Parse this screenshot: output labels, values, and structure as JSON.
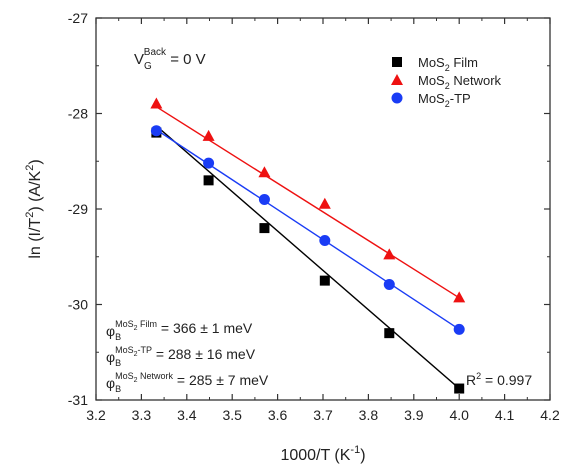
{
  "chart_data": {
    "type": "scatter",
    "xlabel": {
      "main": "1000/T (K",
      "sup": "-1",
      "end": ")"
    },
    "ylabel": {
      "main": "ln (I/T",
      "sup": "2",
      "end": ") (A/K",
      "sup2": "2",
      "end2": ")"
    },
    "xlim": [
      3.2,
      4.2
    ],
    "ylim": [
      -31,
      -27
    ],
    "xticks": [
      "3.2",
      "3.3",
      "3.4",
      "3.5",
      "3.6",
      "3.7",
      "3.8",
      "3.9",
      "4.0",
      "4.1",
      "4.2"
    ],
    "yticks": [
      "-27",
      "-28",
      "-29",
      "-30",
      "-31"
    ],
    "grid": false,
    "legend_position": "top-right",
    "series": [
      {
        "name": "MoS2 Film",
        "name_parts": {
          "a": "MoS",
          "sub": "2",
          "b": " Film"
        },
        "marker": "square",
        "color": "#000000",
        "x": [
          3.333,
          3.448,
          3.571,
          3.704,
          3.846,
          4.0
        ],
        "y": [
          -28.2,
          -28.7,
          -29.2,
          -29.75,
          -30.3,
          -30.88
        ],
        "fit": [
          [
            3.333,
            -28.13
          ],
          [
            4.0,
            -30.88
          ]
        ],
        "fit_color": "#000000"
      },
      {
        "name": "MoS2 Network",
        "name_parts": {
          "a": "MoS",
          "sub": "2",
          "b": " Network"
        },
        "marker": "triangle",
        "color": "#ee1111",
        "x": [
          3.333,
          3.448,
          3.571,
          3.704,
          3.846,
          4.0
        ],
        "y": [
          -27.9,
          -28.24,
          -28.62,
          -28.95,
          -29.48,
          -29.93
        ],
        "fit": [
          [
            3.333,
            -27.93
          ],
          [
            4.0,
            -29.93
          ]
        ],
        "fit_color": "#ee1111"
      },
      {
        "name": "MoS2-TP",
        "name_parts": {
          "a": "MoS",
          "sub": "2",
          "b": "-TP"
        },
        "marker": "circle",
        "color": "#1a3cf5",
        "x": [
          3.333,
          3.448,
          3.571,
          3.704,
          3.846,
          4.0
        ],
        "y": [
          -28.18,
          -28.52,
          -28.9,
          -29.33,
          -29.79,
          -30.26
        ],
        "fit": [
          [
            3.333,
            -28.17
          ],
          [
            4.0,
            -30.26
          ]
        ],
        "fit_color": "#1a3cf5"
      }
    ],
    "annotations": {
      "gate": {
        "v": "V",
        "sub": "G",
        "sup": "Back",
        "rest": " = 0 V"
      },
      "phi_film": {
        "phi": "φ",
        "sub": "B",
        "sup": "MoS",
        "supsub": "2",
        "supend": " Film",
        "rest": " = 366  ± 1 meV"
      },
      "phi_tp": {
        "phi": "φ",
        "sub": "B",
        "sup": "MoS",
        "supsub": "2",
        "supend": "-TP",
        "rest": " = 288  ± 16 meV"
      },
      "phi_network": {
        "phi": "φ",
        "sub": "B",
        "sup": "MoS",
        "supsub": "2",
        "supend": " Network",
        "rest": " = 285  ± 7 meV"
      },
      "r2": {
        "r": "R",
        "sup": "2",
        "rest": " = 0.997"
      }
    }
  }
}
